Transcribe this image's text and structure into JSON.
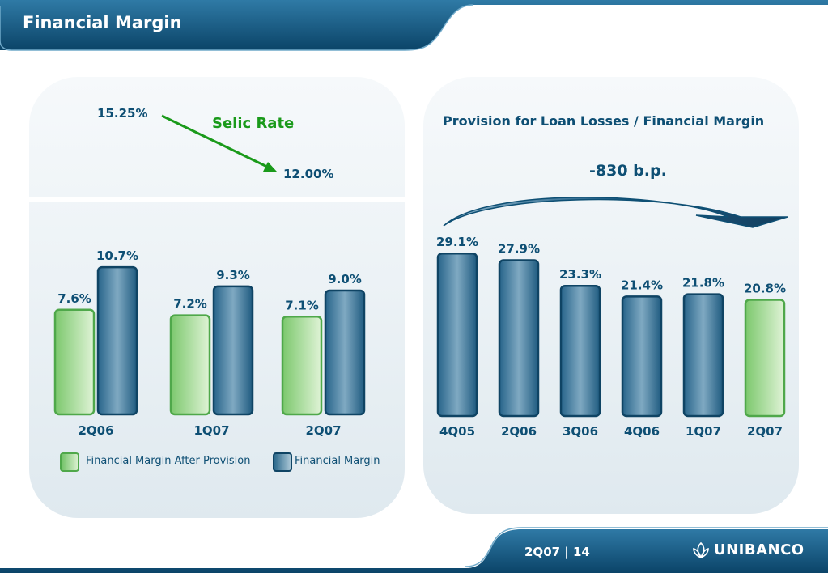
{
  "header": {
    "title": "Financial Margin"
  },
  "footer": {
    "page": "2Q07 | 14",
    "brand": "UNIBANCO"
  },
  "colors": {
    "navy": "#0e4f74",
    "green": "#1a9a1a",
    "bar_blue": "#2d6a8c",
    "bar_green": "#8fd07e"
  },
  "selic": {
    "label": "Selic Rate",
    "start": "15.25%",
    "end": "12.00%"
  },
  "chart_data": [
    {
      "type": "bar",
      "categories": [
        "2Q06",
        "1Q07",
        "2Q07"
      ],
      "series": [
        {
          "name": "Financial Margin After Provision",
          "values": [
            7.6,
            7.2,
            7.1
          ],
          "labels": [
            "7.6%",
            "7.2%",
            "7.1%"
          ],
          "color": "green"
        },
        {
          "name": "Financial Margin",
          "values": [
            10.7,
            9.3,
            9.0
          ],
          "labels": [
            "10.7%",
            "9.3%",
            "9.0%"
          ],
          "color": "blue"
        }
      ],
      "legend": "bottom",
      "grid": false,
      "ylim": [
        0,
        11
      ]
    },
    {
      "type": "bar",
      "title": "Provision for Loan Losses / Financial Margin",
      "annotation": "-830 b.p.",
      "categories": [
        "4Q05",
        "2Q06",
        "3Q06",
        "4Q06",
        "1Q07",
        "2Q07"
      ],
      "values": [
        29.1,
        27.9,
        23.3,
        21.4,
        21.8,
        20.8
      ],
      "labels": [
        "29.1%",
        "27.9%",
        "23.3%",
        "21.4%",
        "21.8%",
        "20.8%"
      ],
      "highlight_last": true,
      "grid": false,
      "ylim": [
        0,
        30
      ]
    }
  ]
}
